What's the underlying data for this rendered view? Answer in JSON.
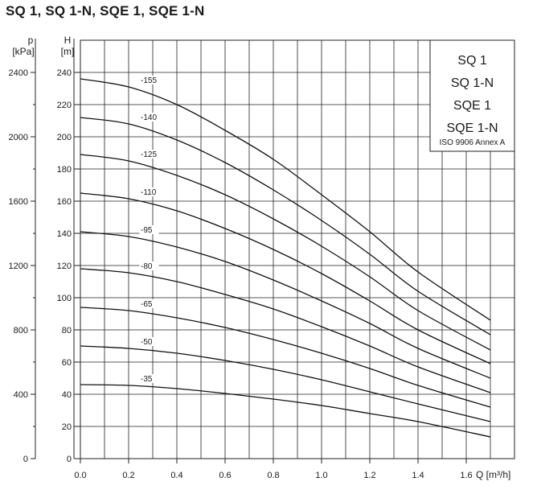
{
  "title": "SQ 1, SQ 1-N, SQE 1, SQE 1-N",
  "chart_data": {
    "type": "line",
    "xlabel": "Q [m³/h]",
    "ylabel_head": "H",
    "ylabel_head_unit": "[m]",
    "ylabel_pressure": "p",
    "ylabel_pressure_unit": "[kPa]",
    "xlim": [
      0,
      1.7
    ],
    "ylim": [
      0,
      240
    ],
    "pressure_lim": [
      0,
      2400
    ],
    "x_ticks": [
      "0.0",
      "0.2",
      "0.4",
      "0.6",
      "0.8",
      "1.0",
      "1.2",
      "1.4",
      "1.6"
    ],
    "x_tick_values": [
      0,
      0.2,
      0.4,
      0.6,
      0.8,
      1.0,
      1.2,
      1.4,
      1.6
    ],
    "y_ticks": [
      0,
      20,
      40,
      60,
      80,
      100,
      120,
      140,
      160,
      180,
      200,
      220,
      240
    ],
    "pressure_ticks": [
      0,
      400,
      800,
      1200,
      1600,
      2000,
      2400
    ],
    "grid": true,
    "legend_position": "top-right",
    "legend_lines": [
      "SQ 1",
      "SQ 1-N",
      "SQE 1",
      "SQE 1-N"
    ],
    "legend_note": "ISO 9906 Annex A",
    "series": [
      {
        "name": "-35",
        "x": [
          0,
          0.2,
          0.4,
          0.6,
          0.8,
          1.0,
          1.2,
          1.4,
          1.7
        ],
        "y": [
          46,
          45.5,
          43.5,
          40.5,
          37,
          33,
          28,
          23,
          13.5
        ]
      },
      {
        "name": "-50",
        "x": [
          0,
          0.2,
          0.4,
          0.6,
          0.8,
          1.0,
          1.2,
          1.4,
          1.7
        ],
        "y": [
          70,
          68.5,
          65.5,
          61,
          55.5,
          49,
          41.5,
          34,
          23
        ]
      },
      {
        "name": "-65",
        "x": [
          0,
          0.2,
          0.4,
          0.6,
          0.8,
          1.0,
          1.2,
          1.4,
          1.7
        ],
        "y": [
          94,
          92,
          87.5,
          81.5,
          74,
          65.5,
          56,
          45.5,
          32
        ]
      },
      {
        "name": "-80",
        "x": [
          0,
          0.2,
          0.4,
          0.6,
          0.8,
          1.0,
          1.2,
          1.4,
          1.7
        ],
        "y": [
          118,
          115.5,
          110,
          102,
          93,
          82,
          70,
          57,
          41
        ]
      },
      {
        "name": "-95",
        "x": [
          0,
          0.2,
          0.4,
          0.6,
          0.8,
          1.0,
          1.2,
          1.4,
          1.7
        ],
        "y": [
          141,
          138,
          131.5,
          122.5,
          111,
          98,
          84,
          68.5,
          50
        ]
      },
      {
        "name": "-110",
        "x": [
          0,
          0.2,
          0.4,
          0.6,
          0.8,
          1.0,
          1.2,
          1.4,
          1.7
        ],
        "y": [
          165,
          161.5,
          154,
          143,
          130,
          115,
          98,
          80,
          59
        ]
      },
      {
        "name": "-125",
        "x": [
          0,
          0.2,
          0.4,
          0.6,
          0.8,
          1.0,
          1.2,
          1.4,
          1.7
        ],
        "y": [
          189,
          185,
          176,
          164,
          149,
          132,
          113,
          92,
          67.5
        ]
      },
      {
        "name": "-140",
        "x": [
          0,
          0.2,
          0.4,
          0.6,
          0.8,
          1.0,
          1.2,
          1.4,
          1.7
        ],
        "y": [
          212,
          208,
          198,
          184,
          167,
          148,
          127,
          104,
          77
        ]
      },
      {
        "name": "-155",
        "x": [
          0,
          0.2,
          0.4,
          0.6,
          0.8,
          1.0,
          1.2,
          1.4,
          1.7
        ],
        "y": [
          236,
          231,
          220,
          204,
          186,
          164,
          141,
          116,
          86
        ]
      }
    ]
  }
}
